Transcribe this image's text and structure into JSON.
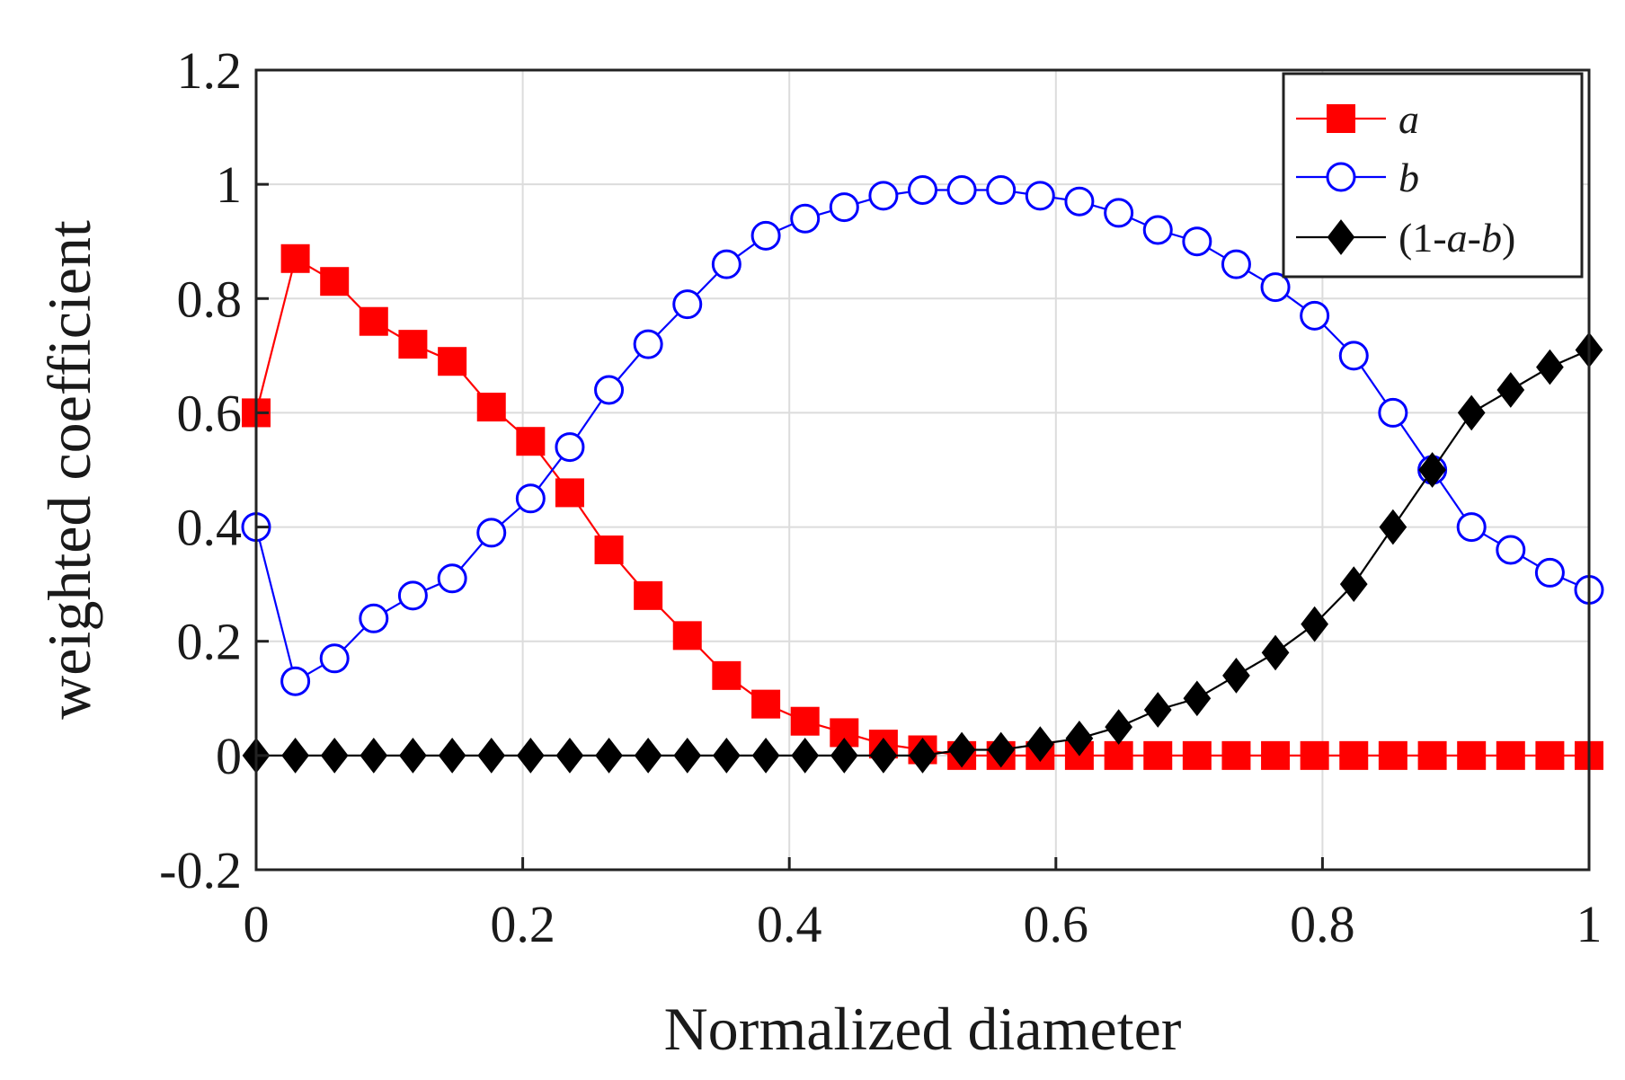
{
  "chart_data": {
    "type": "line",
    "xlabel": "Normalized diameter",
    "ylabel": "weighted coefficient",
    "xlim": [
      0,
      1
    ],
    "ylim": [
      -0.2,
      1.2
    ],
    "xticks": [
      "0",
      "0.2",
      "0.4",
      "0.6",
      "0.8",
      "1"
    ],
    "yticks": [
      "-0.2",
      "0",
      "0.2",
      "0.4",
      "0.6",
      "0.8",
      "1",
      "1.2"
    ],
    "grid": true,
    "legend_position": "top-right",
    "x": [
      0,
      0.0294,
      0.0588,
      0.0882,
      0.1176,
      0.1471,
      0.1765,
      0.2059,
      0.2353,
      0.2647,
      0.2941,
      0.3235,
      0.3529,
      0.3824,
      0.4118,
      0.4412,
      0.4706,
      0.5,
      0.5294,
      0.5588,
      0.5882,
      0.6176,
      0.6471,
      0.6765,
      0.7059,
      0.7353,
      0.7647,
      0.7941,
      0.8235,
      0.8529,
      0.8824,
      0.9118,
      0.9412,
      0.9706,
      1
    ],
    "series": [
      {
        "name": "a",
        "color": "#ff0000",
        "marker": "square-filled",
        "values": [
          0.6,
          0.87,
          0.83,
          0.76,
          0.72,
          0.69,
          0.61,
          0.55,
          0.46,
          0.36,
          0.28,
          0.21,
          0.14,
          0.09,
          0.06,
          0.04,
          0.02,
          0.01,
          0.0,
          0.0,
          0.0,
          0.0,
          0.0,
          0.0,
          0.0,
          0.0,
          0.0,
          0.0,
          0.0,
          0.0,
          0.0,
          0.0,
          0.0,
          0.0,
          0.0
        ]
      },
      {
        "name": "b",
        "color": "#0000ff",
        "marker": "circle-open",
        "values": [
          0.4,
          0.13,
          0.17,
          0.24,
          0.28,
          0.31,
          0.39,
          0.45,
          0.54,
          0.64,
          0.72,
          0.79,
          0.86,
          0.91,
          0.94,
          0.96,
          0.98,
          0.99,
          0.99,
          0.99,
          0.98,
          0.97,
          0.95,
          0.92,
          0.9,
          0.86,
          0.82,
          0.77,
          0.7,
          0.6,
          0.5,
          0.4,
          0.36,
          0.32,
          0.29
        ]
      },
      {
        "name": "(1-a-b)",
        "color": "#000000",
        "marker": "diamond-filled",
        "values": [
          0.0,
          0.0,
          0.0,
          0.0,
          0.0,
          0.0,
          0.0,
          0.0,
          0.0,
          0.0,
          0.0,
          0.0,
          0.0,
          0.0,
          0.0,
          0.0,
          0.0,
          0.0,
          0.01,
          0.01,
          0.02,
          0.03,
          0.05,
          0.08,
          0.1,
          0.14,
          0.18,
          0.23,
          0.3,
          0.4,
          0.5,
          0.6,
          0.64,
          0.68,
          0.71
        ]
      }
    ]
  }
}
